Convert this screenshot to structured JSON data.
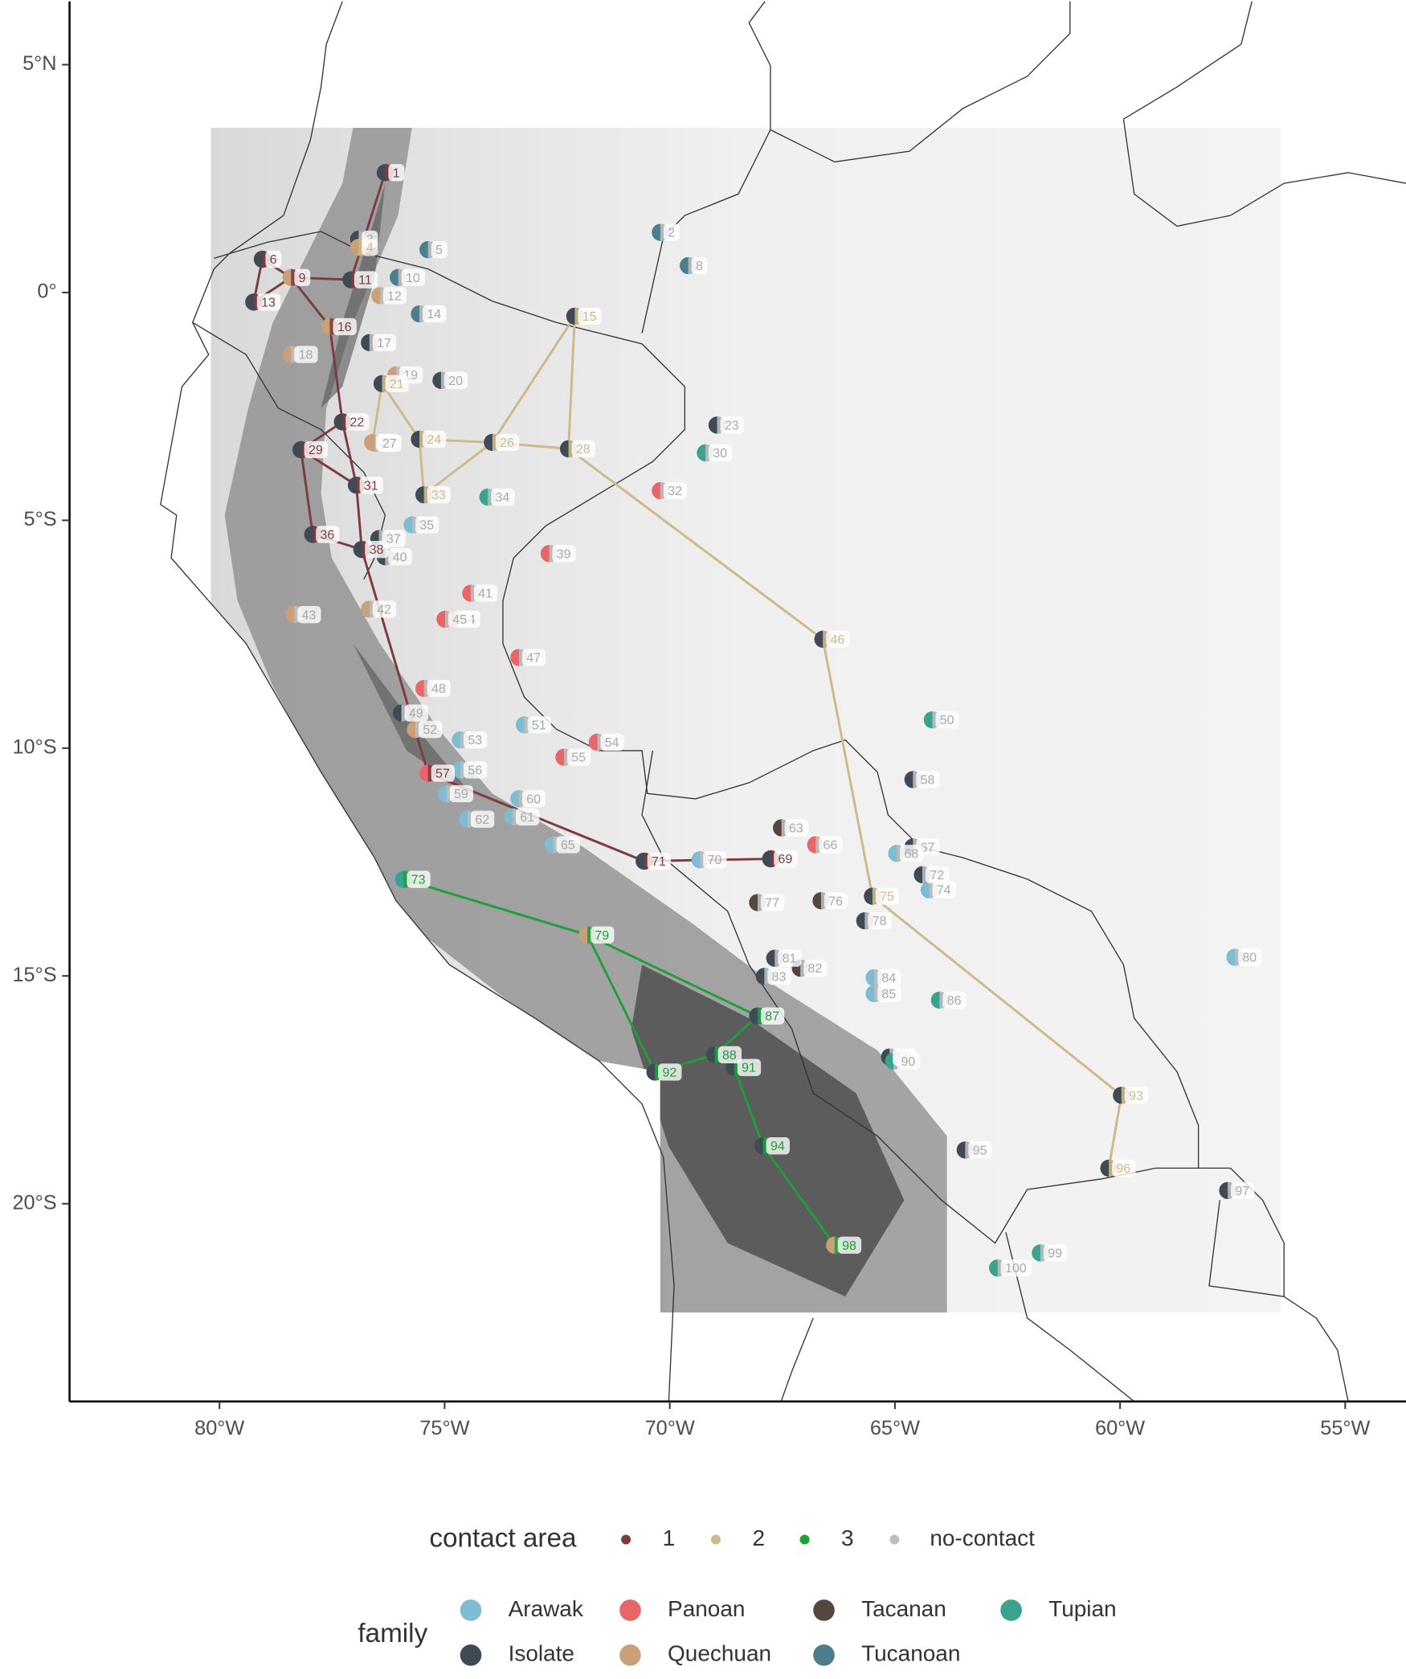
{
  "chart_data": {
    "type": "map",
    "xlim": [
      -83.33,
      -53.65
    ],
    "ylim": [
      -24.34,
      6.39
    ],
    "xticks": [
      {
        "value": -80,
        "label": "80°W"
      },
      {
        "value": -75,
        "label": "75°W"
      },
      {
        "value": -70,
        "label": "70°W"
      },
      {
        "value": -65,
        "label": "65°W"
      },
      {
        "value": -60,
        "label": "60°W"
      },
      {
        "value": -55,
        "label": "55°W"
      }
    ],
    "yticks": [
      {
        "value": 5,
        "label": "5°N"
      },
      {
        "value": 0,
        "label": "0°"
      },
      {
        "value": -5,
        "label": "5°S"
      },
      {
        "value": -10,
        "label": "10°S"
      },
      {
        "value": -15,
        "label": "15°S"
      },
      {
        "value": -20,
        "label": "20°S"
      }
    ],
    "contact_area": {
      "title": "contact area",
      "categories": [
        {
          "name": "1",
          "color": "#7d3b3b",
          "links": [
            [
              1,
              11
            ],
            [
              6,
              9
            ],
            [
              6,
              13
            ],
            [
              13,
              9
            ],
            [
              9,
              11
            ],
            [
              9,
              16
            ],
            [
              16,
              22
            ],
            [
              22,
              29
            ],
            [
              22,
              31
            ],
            [
              29,
              31
            ],
            [
              29,
              36
            ],
            [
              31,
              38
            ],
            [
              36,
              38
            ],
            [
              38,
              57
            ],
            [
              57,
              71
            ],
            [
              71,
              69
            ]
          ]
        },
        {
          "name": "2",
          "color": "#cdb98a",
          "links": [
            [
              21,
              25
            ],
            [
              21,
              24
            ],
            [
              24,
              33
            ],
            [
              24,
              26
            ],
            [
              26,
              33
            ],
            [
              26,
              15
            ],
            [
              15,
              28
            ],
            [
              26,
              28
            ],
            [
              28,
              46
            ],
            [
              46,
              75
            ],
            [
              75,
              93
            ],
            [
              93,
              96
            ]
          ]
        },
        {
          "name": "3",
          "color": "#1f9e3a",
          "links": [
            [
              73,
              79
            ],
            [
              79,
              87
            ],
            [
              79,
              92
            ],
            [
              92,
              88
            ],
            [
              88,
              87
            ],
            [
              88,
              91
            ],
            [
              91,
              94
            ],
            [
              94,
              98
            ]
          ]
        },
        {
          "name": "no-contact",
          "color": "#bdbdbd",
          "links": []
        }
      ]
    },
    "family": {
      "title": "family",
      "categories": [
        {
          "name": "Arawak",
          "color": "#7fbcd2"
        },
        {
          "name": "Isolate",
          "color": "#3e4b55"
        },
        {
          "name": "Panoan",
          "color": "#e8666a"
        },
        {
          "name": "Quechuan",
          "color": "#c9a078"
        },
        {
          "name": "Tacanan",
          "color": "#54483e"
        },
        {
          "name": "Tucanoan",
          "color": "#4e7d8d"
        },
        {
          "name": "Tupian",
          "color": "#3aa38f"
        }
      ]
    },
    "points": {
      "id": [
        1,
        2,
        3,
        4,
        5,
        6,
        8,
        9,
        10,
        11,
        12,
        13,
        14,
        15,
        16,
        17,
        18,
        19,
        20,
        21,
        22,
        23,
        24,
        25,
        26,
        27,
        28,
        29,
        30,
        31,
        32,
        33,
        34,
        35,
        36,
        37,
        38,
        39,
        40,
        41,
        42,
        43,
        44,
        45,
        46,
        47,
        48,
        49,
        50,
        51,
        52,
        53,
        54,
        55,
        56,
        57,
        58,
        59,
        60,
        61,
        62,
        63,
        65,
        66,
        67,
        68,
        69,
        70,
        71,
        72,
        73,
        74,
        75,
        76,
        77,
        78,
        79,
        80,
        81,
        82,
        83,
        84,
        85,
        86,
        87,
        88,
        89,
        90,
        91,
        92,
        93,
        94,
        95,
        96,
        97,
        98,
        99,
        100
      ],
      "lon": [
        -76.32,
        -70.21,
        -76.91,
        -76.91,
        -75.37,
        -79.05,
        -69.59,
        -78.41,
        -76.03,
        -77.08,
        -76.44,
        -79.24,
        -75.56,
        -72.11,
        -77.55,
        -76.67,
        -78.41,
        -76.08,
        -75.08,
        -76.39,
        -77.27,
        -68.95,
        -75.56,
        -76.6,
        -73.94,
        -76.55,
        -72.25,
        -78.19,
        -69.21,
        -76.96,
        -70.21,
        -75.46,
        -74.04,
        -75.72,
        -77.93,
        -76.46,
        -76.84,
        -72.68,
        -76.32,
        -74.42,
        -76.67,
        -78.34,
        -74.8,
        -74.99,
        -66.6,
        -73.35,
        -75.46,
        -75.96,
        -64.17,
        -73.23,
        -75.65,
        -74.65,
        -71.61,
        -72.35,
        -74.65,
        -75.37,
        -64.6,
        -74.96,
        -73.35,
        -73.49,
        -74.49,
        -67.52,
        -72.59,
        -66.76,
        -64.6,
        -64.96,
        -67.76,
        -69.33,
        -70.57,
        -64.39,
        -75.91,
        -64.24,
        -65.5,
        -66.64,
        -68.05,
        -65.67,
        -71.83,
        -57.45,
        -67.67,
        -67.1,
        -67.9,
        -65.46,
        -65.46,
        -64.01,
        -68.05,
        -69.0,
        -65.12,
        -65.03,
        -68.57,
        -70.33,
        -59.97,
        -67.93,
        -63.44,
        -60.25,
        -57.61,
        -66.34,
        -61.77,
        -62.72
      ],
      "lat": [
        2.63,
        1.32,
        1.17,
        0.99,
        0.94,
        0.73,
        0.59,
        0.33,
        0.33,
        0.28,
        -0.07,
        -0.21,
        -0.47,
        -0.52,
        -0.75,
        -1.1,
        -1.36,
        -1.81,
        -1.93,
        -2.0,
        -2.84,
        -2.91,
        -3.22,
        -3.29,
        -3.29,
        -3.31,
        -3.43,
        -3.45,
        -3.52,
        -4.23,
        -4.35,
        -4.44,
        -4.49,
        -5.1,
        -5.31,
        -5.4,
        -5.64,
        -5.73,
        -5.8,
        -6.6,
        -6.95,
        -7.07,
        -7.17,
        -7.17,
        -7.61,
        -8.01,
        -8.69,
        -9.23,
        -9.38,
        -9.49,
        -9.59,
        -9.82,
        -9.87,
        -10.2,
        -10.48,
        -10.55,
        -10.69,
        -11.0,
        -11.11,
        -11.51,
        -11.56,
        -11.75,
        -12.12,
        -12.12,
        -12.17,
        -12.31,
        -12.43,
        -12.45,
        -12.48,
        -12.78,
        -12.88,
        -13.11,
        -13.25,
        -13.35,
        -13.39,
        -13.79,
        -14.1,
        -14.59,
        -14.61,
        -14.83,
        -15.01,
        -15.04,
        -15.39,
        -15.53,
        -15.88,
        -16.73,
        -16.78,
        -16.87,
        -17.01,
        -17.11,
        -17.62,
        -18.73,
        -18.82,
        -19.22,
        -19.71,
        -20.91,
        -21.08,
        -21.41
      ],
      "family": [
        "Isolate",
        "Tucanoan",
        "Isolate",
        "Quechuan",
        "Tucanoan",
        "Isolate",
        "Tucanoan",
        "Quechuan",
        "Tucanoan",
        "Isolate",
        "Quechuan",
        "Isolate",
        "Tucanoan",
        "Isolate",
        "Quechuan",
        "Isolate",
        "Quechuan",
        "Quechuan",
        "Isolate",
        "Isolate",
        "Isolate",
        "Isolate",
        "Isolate",
        "Quechuan",
        "Isolate",
        "Quechuan",
        "Isolate",
        "Isolate",
        "Tupian",
        "Isolate",
        "Panoan",
        "Isolate",
        "Tupian",
        "Arawak",
        "Isolate",
        "Isolate",
        "Isolate",
        "Panoan",
        "Isolate",
        "Panoan",
        "Quechuan",
        "Quechuan",
        "Panoan",
        "Panoan",
        "Isolate",
        "Panoan",
        "Panoan",
        "Isolate",
        "Tupian",
        "Arawak",
        "Quechuan",
        "Arawak",
        "Panoan",
        "Panoan",
        "Arawak",
        "Panoan",
        "Isolate",
        "Arawak",
        "Arawak",
        "Arawak",
        "Arawak",
        "Tacanan",
        "Arawak",
        "Panoan",
        "Isolate",
        "Arawak",
        "Isolate",
        "Arawak",
        "Isolate",
        "Isolate",
        "Tupian",
        "Arawak",
        "Isolate",
        "Tacanan",
        "Tacanan",
        "Isolate",
        "Quechuan",
        "Arawak",
        "Isolate",
        "Tacanan",
        "Isolate",
        "Arawak",
        "Arawak",
        "Tupian",
        "Isolate",
        "Isolate",
        "Isolate",
        "Tupian",
        "Isolate",
        "Isolate",
        "Isolate",
        "Isolate",
        "Isolate",
        "Isolate",
        "Isolate",
        "Quechuan",
        "Tupian",
        "Tupian"
      ],
      "area": [
        "1",
        "no-contact",
        "no-contact",
        "2",
        "no-contact",
        "1",
        "no-contact",
        "1",
        "no-contact",
        "1",
        "no-contact",
        "1",
        "no-contact",
        "2",
        "1",
        "no-contact",
        "no-contact",
        "no-contact",
        "no-contact",
        "2",
        "1",
        "no-contact",
        "2",
        "2",
        "2",
        "no-contact",
        "2",
        "1",
        "no-contact",
        "1",
        "no-contact",
        "2",
        "no-contact",
        "no-contact",
        "1",
        "no-contact",
        "1",
        "no-contact",
        "no-contact",
        "no-contact",
        "no-contact",
        "no-contact",
        "no-contact",
        "no-contact",
        "2",
        "no-contact",
        "no-contact",
        "no-contact",
        "no-contact",
        "no-contact",
        "no-contact",
        "no-contact",
        "no-contact",
        "no-contact",
        "no-contact",
        "1",
        "no-contact",
        "no-contact",
        "no-contact",
        "no-contact",
        "no-contact",
        "no-contact",
        "no-contact",
        "no-contact",
        "no-contact",
        "no-contact",
        "1",
        "no-contact",
        "1",
        "no-contact",
        "3",
        "no-contact",
        "2",
        "no-contact",
        "no-contact",
        "no-contact",
        "3",
        "no-contact",
        "no-contact",
        "no-contact",
        "no-contact",
        "no-contact",
        "no-contact",
        "no-contact",
        "3",
        "3",
        "no-contact",
        "no-contact",
        "3",
        "3",
        "2",
        "3",
        "no-contact",
        "2",
        "no-contact",
        "3",
        "no-contact",
        "no-contact"
      ]
    }
  }
}
